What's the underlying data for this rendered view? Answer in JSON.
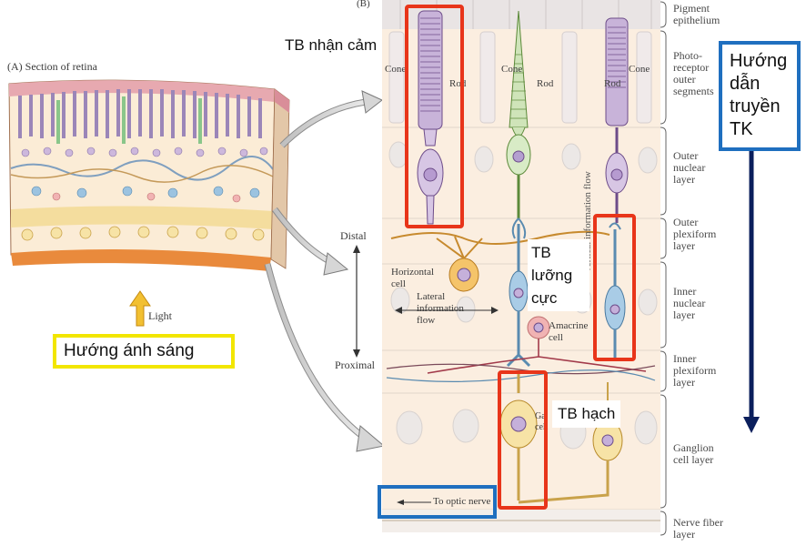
{
  "panelA": {
    "title": "(A) Section of retina",
    "light_label": "Light"
  },
  "panelB": {
    "title": "(B)",
    "cell_labels": {
      "cone_left": "Cone",
      "rod_left": "Rod",
      "cone_mid": "Cone",
      "rod_mid": "Rod",
      "rod_right": "Rod",
      "cone_right": "Cone",
      "horizontal": "Horizontal cell",
      "amacrine": "Amacrine cell",
      "ganglion": "Ga cell"
    },
    "axis": {
      "distal": "Distal",
      "proximal": "Proximal",
      "lateral": "Lateral information flow",
      "vertical": "Vertical information flow",
      "optic": "To optic nerve"
    },
    "layers": [
      "Pigment epithelium",
      "Photo-receptor outer segments",
      "Outer nuclear layer",
      "Outer plexiform layer",
      "Inner nuclear layer",
      "Inner plexiform layer",
      "Ganglion cell layer",
      "Nerve fiber layer"
    ]
  },
  "annotations": {
    "photoreceptor": "TB nhận cảm",
    "bipolar": "TB lưỡng cực",
    "ganglion": "TB hạch",
    "light_direction": "Hướng ánh sáng",
    "nerve_direction": "Hướng dẫn truyền TK"
  },
  "colors": {
    "red_box": "#e8351a",
    "blue_box": "#1f6fbf",
    "yellow_box": "#f2e600",
    "dark_arrow": "#0b1f5c",
    "background_tissue": "#f9e9d8"
  }
}
